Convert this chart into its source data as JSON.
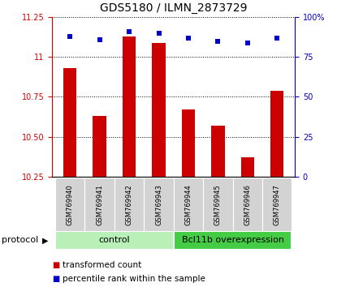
{
  "title": "GDS5180 / ILMN_2873729",
  "samples": [
    "GSM769940",
    "GSM769941",
    "GSM769942",
    "GSM769943",
    "GSM769944",
    "GSM769945",
    "GSM769946",
    "GSM769947"
  ],
  "transformed_count": [
    10.93,
    10.63,
    11.13,
    11.09,
    10.67,
    10.57,
    10.37,
    10.79
  ],
  "percentile_rank": [
    88,
    86,
    91,
    90,
    87,
    85,
    84,
    87
  ],
  "ylim_left": [
    10.25,
    11.25
  ],
  "ylim_right": [
    0,
    100
  ],
  "yticks_left": [
    10.25,
    10.5,
    10.75,
    11.0,
    11.25
  ],
  "yticks_right": [
    0,
    25,
    50,
    75,
    100
  ],
  "bar_color": "#cc0000",
  "dot_color": "#0000cc",
  "bar_width": 0.45,
  "groups": [
    {
      "label": "control",
      "start": 0,
      "end": 3,
      "color": "#b8f0b8"
    },
    {
      "label": "Bcl11b overexpression",
      "start": 4,
      "end": 7,
      "color": "#44cc44"
    }
  ],
  "protocol_label": "protocol",
  "legend_entries": [
    {
      "label": "transformed count",
      "color": "#cc0000"
    },
    {
      "label": "percentile rank within the sample",
      "color": "#0000cc"
    }
  ],
  "title_fontsize": 10,
  "tick_label_fontsize": 7,
  "axis_fontsize": 8,
  "sample_label_fontsize": 6,
  "group_label_fontsize": 8,
  "legend_fontsize": 7.5
}
